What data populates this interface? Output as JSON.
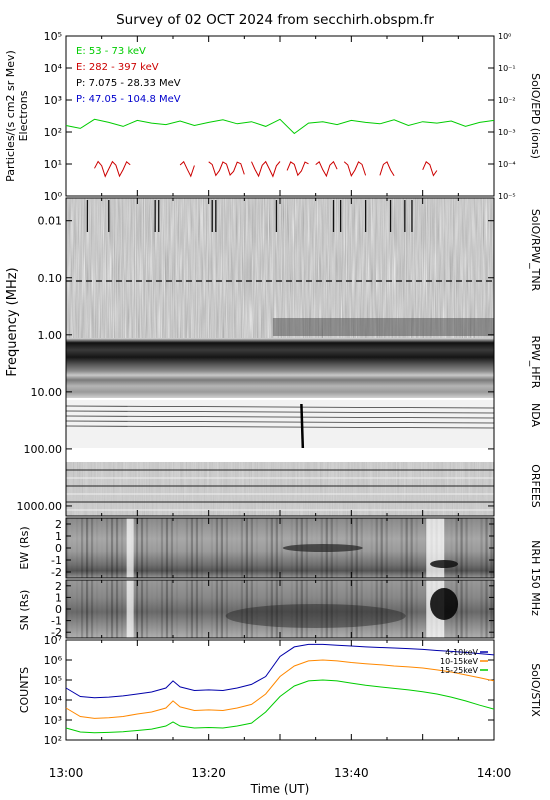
{
  "title": "Survey of 02 OCT 2024 from secchirh.obspm.fr",
  "time_axis": {
    "label": "Time (UT)",
    "ticks": [
      "13:00",
      "13:20",
      "13:40",
      "14:00"
    ],
    "range_minutes": [
      0,
      60
    ]
  },
  "chart_data": [
    {
      "type": "line",
      "panel": "epd",
      "ylabel": "Particles/(s cm2 sr Mev)",
      "ylabel2": "Electrons",
      "right_label": "SolO/EPD (ions)",
      "yscale": "log",
      "ylim": [
        1,
        100000
      ],
      "y_ticks": [
        "10⁰",
        "10¹",
        "10²",
        "10³",
        "10⁴",
        "10⁵"
      ],
      "y2_ticks": [
        "10⁻⁵",
        "10⁻⁴",
        "10⁻³",
        "10⁻²",
        "10⁻¹",
        "10⁰"
      ],
      "series": [
        {
          "name": "E: 53 - 73 keV",
          "color": "#00cc00",
          "x": [
            0,
            2,
            4,
            6,
            8,
            10,
            12,
            14,
            16,
            18,
            20,
            22,
            24,
            26,
            28,
            30,
            32,
            34,
            36,
            38,
            40,
            42,
            44,
            46,
            48,
            50,
            52,
            54,
            56,
            58,
            60
          ],
          "values": [
            160,
            130,
            250,
            200,
            150,
            230,
            190,
            170,
            220,
            160,
            200,
            240,
            180,
            210,
            150,
            250,
            90,
            190,
            210,
            170,
            230,
            200,
            180,
            240,
            160,
            210,
            190,
            220,
            150,
            200,
            230
          ]
        },
        {
          "name": "E: 282 - 397 keV",
          "color": "#cc0000"
        },
        {
          "name": "P: 7.075 - 28.33 MeV",
          "color": "#000000"
        },
        {
          "name": "P: 47.05 - 104.8 MeV",
          "color": "#0000cc"
        }
      ]
    },
    {
      "type": "heatmap",
      "panel": "radio",
      "ylabel": "Frequency (MHz)",
      "yscale": "log",
      "ylim": [
        0.004,
        1500
      ],
      "y_ticks": [
        "0.01",
        "0.10",
        "1.00",
        "10.00",
        "100.00",
        "1000.00"
      ],
      "right_labels": [
        "SolO/RPW_TNR",
        "RPW_HFR",
        "NDA",
        "ORFEES"
      ]
    },
    {
      "type": "heatmap",
      "panel": "nrh_ew",
      "ylabel": "EW (Rs)",
      "ylim": [
        -2.5,
        2.5
      ],
      "y_ticks": [
        "-2",
        "-1",
        "0",
        "1",
        "2"
      ]
    },
    {
      "type": "heatmap",
      "panel": "nrh_sn",
      "ylabel": "SN (Rs)",
      "right_label": "NRH 150 MHz",
      "ylim": [
        -2.5,
        2.5
      ],
      "y_ticks": [
        "-2",
        "-1",
        "0",
        "1",
        "2"
      ]
    },
    {
      "type": "line",
      "panel": "stix",
      "ylabel": "COUNTS",
      "right_label": "SolO/STIX",
      "yscale": "log",
      "ylim": [
        100,
        10000000
      ],
      "y_ticks": [
        "10²",
        "10³",
        "10⁴",
        "10⁵",
        "10⁶",
        "10⁷"
      ],
      "series": [
        {
          "name": "4-10keV",
          "color": "#0000aa",
          "x": [
            0,
            2,
            4,
            6,
            8,
            10,
            12,
            14,
            15,
            16,
            18,
            20,
            22,
            24,
            26,
            28,
            30,
            32,
            34,
            36,
            38,
            40,
            42,
            44,
            46,
            48,
            50,
            52,
            54,
            56,
            58,
            60
          ],
          "values": [
            40000,
            15000,
            13000,
            14000,
            16000,
            20000,
            25000,
            40000,
            90000,
            45000,
            30000,
            32000,
            30000,
            40000,
            60000,
            150000,
            1500000,
            4500000,
            6000000,
            6000000,
            5500000,
            5000000,
            4500000,
            4200000,
            4000000,
            3700000,
            3400000,
            3000000,
            2700000,
            2400000,
            2100000,
            1800000
          ]
        },
        {
          "name": "10-15keV",
          "color": "#ff8800",
          "x": [
            0,
            2,
            4,
            6,
            8,
            10,
            12,
            14,
            15,
            16,
            18,
            20,
            22,
            24,
            26,
            28,
            30,
            32,
            34,
            36,
            38,
            40,
            42,
            44,
            46,
            48,
            50,
            52,
            54,
            56,
            58,
            60
          ],
          "values": [
            4000,
            1500,
            1200,
            1300,
            1500,
            2000,
            2500,
            4000,
            9000,
            4500,
            3000,
            3200,
            3000,
            4000,
            6000,
            20000,
            150000,
            500000,
            900000,
            1000000,
            900000,
            750000,
            650000,
            580000,
            500000,
            450000,
            400000,
            320000,
            250000,
            180000,
            130000,
            90000
          ]
        },
        {
          "name": "15-25keV",
          "color": "#00cc00",
          "x": [
            0,
            2,
            4,
            6,
            8,
            10,
            12,
            14,
            15,
            16,
            18,
            20,
            22,
            24,
            26,
            28,
            30,
            32,
            34,
            36,
            38,
            40,
            42,
            44,
            46,
            48,
            50,
            52,
            54,
            56,
            58,
            60
          ],
          "values": [
            400,
            250,
            230,
            240,
            260,
            300,
            350,
            500,
            800,
            500,
            400,
            420,
            400,
            500,
            700,
            2500,
            15000,
            50000,
            90000,
            100000,
            90000,
            70000,
            55000,
            45000,
            38000,
            32000,
            26000,
            20000,
            14000,
            9000,
            5500,
            3500
          ]
        }
      ]
    }
  ]
}
